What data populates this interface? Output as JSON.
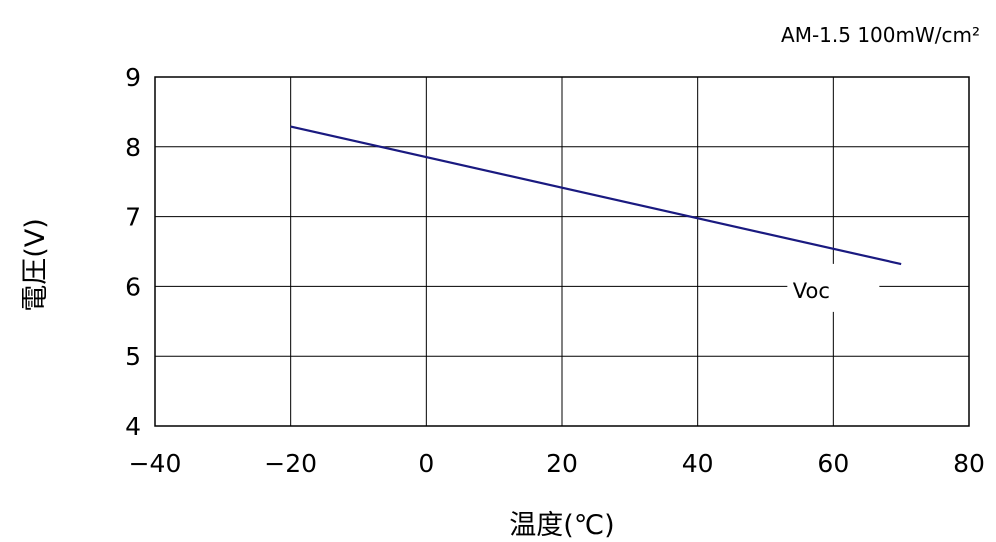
{
  "chart_data": {
    "type": "line",
    "title": "",
    "annotation": "AM-1.5 100mW/cm²",
    "xlabel": "温度(℃)",
    "ylabel": "電圧(V)",
    "xlim": [
      -40,
      80
    ],
    "ylim": [
      4,
      9
    ],
    "xticks": [
      -40,
      -20,
      0,
      20,
      40,
      60,
      80
    ],
    "yticks": [
      4,
      5,
      6,
      7,
      8,
      9
    ],
    "xtick_labels": [
      "−40",
      "−20",
      "0",
      "20",
      "40",
      "60",
      "80"
    ],
    "ytick_labels": [
      "4",
      "5",
      "6",
      "7",
      "8",
      "9"
    ],
    "grid": true,
    "series": [
      {
        "name": "Voc",
        "color": "#1a1a80",
        "x": [
          -20,
          70
        ],
        "y": [
          8.29,
          6.32
        ]
      }
    ]
  }
}
